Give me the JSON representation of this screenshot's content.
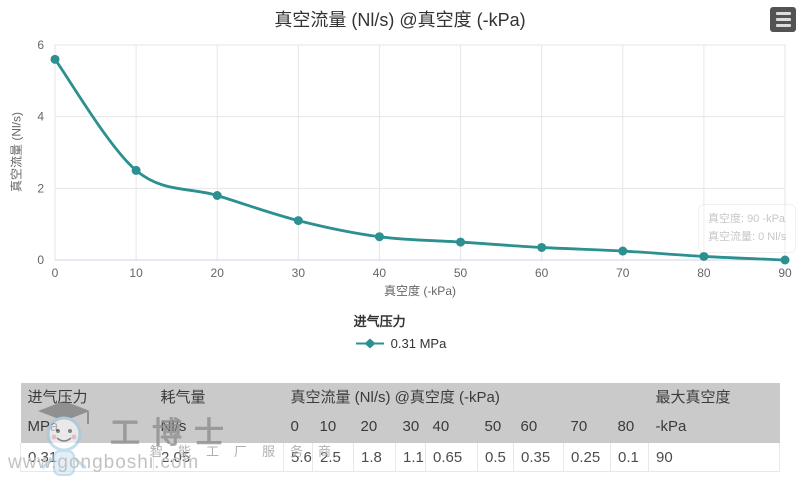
{
  "chart": {
    "title": "真空流量 (Nl/s) @真空度 (-kPa)",
    "context_menu_icon": "hamburger-menu-icon"
  },
  "chart_data": {
    "type": "line",
    "x": [
      0,
      10,
      20,
      30,
      40,
      50,
      60,
      70,
      80,
      90
    ],
    "series": [
      {
        "name": "0.31 MPa",
        "color": "#2b908f",
        "values": [
          5.6,
          2.5,
          1.8,
          1.1,
          0.65,
          0.5,
          0.35,
          0.25,
          0.1,
          0
        ]
      }
    ],
    "title": "真空流量 (Nl/s) @真空度 (-kPa)",
    "xlabel": "真空度 (-kPa)",
    "ylabel": "真空流量 (Nl/s)",
    "xlim": [
      0,
      90
    ],
    "ylim": [
      0,
      6
    ],
    "x_ticks": [
      0,
      10,
      20,
      30,
      40,
      50,
      60,
      70,
      80,
      90
    ],
    "y_ticks": [
      0,
      2,
      4,
      6
    ],
    "grid": true,
    "legend_position": "bottom",
    "legend_title": "进气压力"
  },
  "legend": {
    "title": "进气压力",
    "item_label": "0.31 MPa",
    "marker_icon": "diamond-line-marker-icon"
  },
  "tooltip": {
    "line1": "真空度: 90 -kPa",
    "line2": "真空流量: 0 Nl/s"
  },
  "table": {
    "group_headers": [
      {
        "label": "进气压力",
        "colspan": 1
      },
      {
        "label": "耗气量",
        "colspan": 1
      },
      {
        "label": "真空流量 (Nl/s) @真空度 (-kPa)",
        "colspan": 9
      },
      {
        "label": "最大真空度",
        "colspan": 1
      }
    ],
    "unit_row": [
      "MPa",
      "Nl/s",
      "0",
      "10",
      "20",
      "30",
      "40",
      "50",
      "60",
      "70",
      "80",
      "-kPa"
    ],
    "data_row": [
      "0.31",
      "2.05",
      "5.6",
      "2.5",
      "1.8",
      "1.1",
      "0.65",
      "0.5",
      "0.35",
      "0.25",
      "0.1",
      "90"
    ]
  },
  "watermark": {
    "brand": "工博士",
    "slogan": "智能工厂服务商",
    "url": "www.gongboshi.com",
    "robot_icon": "robot-mascot-icon"
  },
  "colors": {
    "accent": "#2b908f",
    "table_header_bg": "#cacaca",
    "grid_line": "#e6e6e6",
    "axis_line": "#ccd6eb",
    "tick_label": "#666666"
  }
}
